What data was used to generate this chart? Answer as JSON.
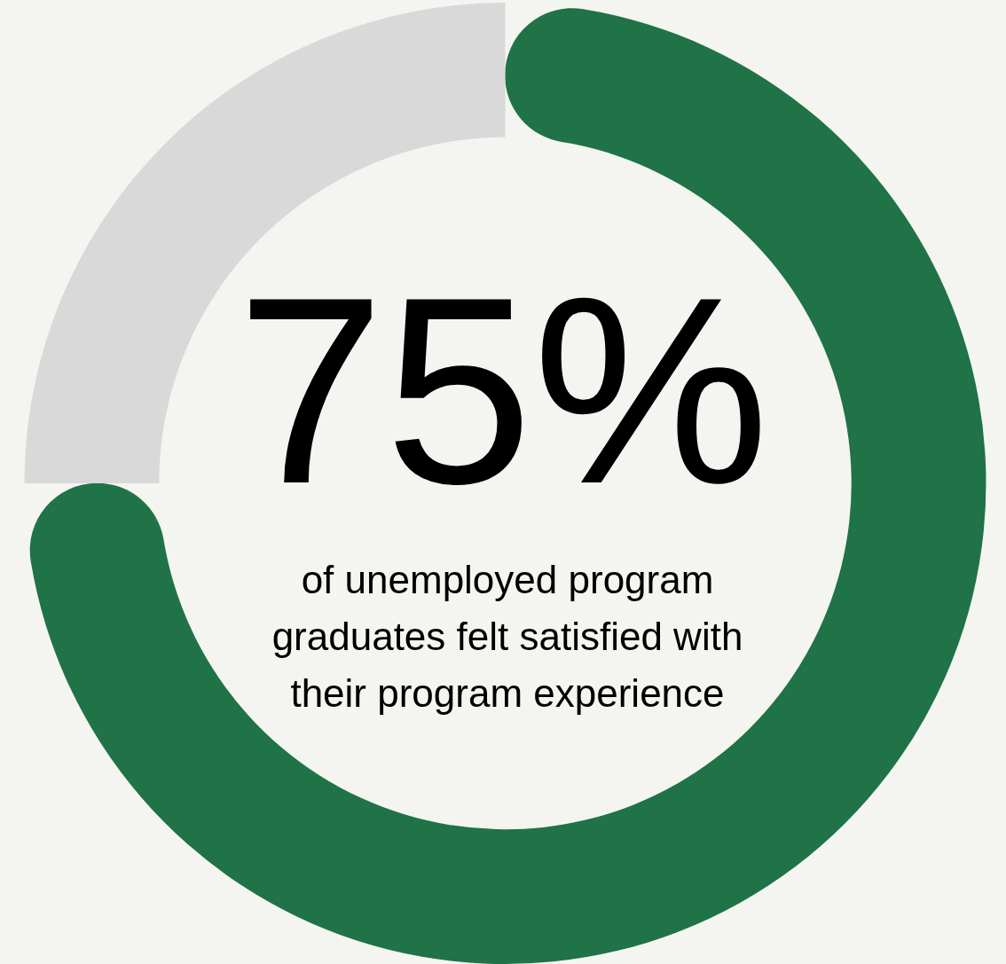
{
  "chart_data": {
    "type": "donut",
    "categories": [
      null,
      null
    ],
    "values": [
      75,
      25
    ],
    "colors": [
      "#1f7347",
      "#d9d9d9"
    ],
    "value_labels": [
      "75%",
      null
    ],
    "annotations": [
      "of unemployed program graduates felt satisfied with their program experience"
    ],
    "legend": false
  }
}
